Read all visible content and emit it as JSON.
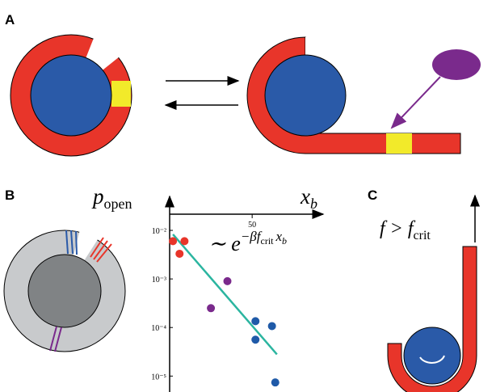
{
  "panels": {
    "a": "A",
    "b": "B",
    "c": "C"
  },
  "panel_c_label": {
    "base": "f > f",
    "sub": "crit"
  },
  "chart_data": {
    "type": "scatter",
    "y_label": {
      "base": "p",
      "sub": "open"
    },
    "x_label": {
      "base": "x",
      "sub": "b"
    },
    "annotation": {
      "base": "∼ e",
      "exponent": "−βf",
      "exponent_sub": "crit",
      "exponent_tail": "x",
      "exponent_tail_sub": "b"
    },
    "yscale": "log",
    "xlim": [
      0,
      93
    ],
    "ylim": [
      4.7e-06,
      0.0316
    ],
    "xticks": [
      50
    ],
    "yticks": [
      {
        "value": 0.01,
        "label": "10⁻²"
      },
      {
        "value": 0.001,
        "label": "10⁻³"
      },
      {
        "value": 0.0001,
        "label": "10⁻⁴"
      },
      {
        "value": 1e-05,
        "label": "10⁻⁵"
      }
    ],
    "series": [
      {
        "color": "#e8352a",
        "x": [
          2,
          9,
          6
        ],
        "values": [
          0.006,
          0.006,
          0.0033
        ]
      },
      {
        "color": "#7a2a8c",
        "x": [
          35,
          25
        ],
        "values": [
          0.0009,
          0.00025
        ]
      },
      {
        "color": "#1f5aa8",
        "x": [
          52,
          52,
          62,
          64
        ],
        "values": [
          0.000135,
          5.62e-05,
          0.000107,
          7.4e-06
        ]
      }
    ],
    "fit": {
      "color": "#2bb5a0",
      "x": [
        2,
        65
      ],
      "values": [
        0.0083,
        2.8e-05
      ]
    }
  }
}
